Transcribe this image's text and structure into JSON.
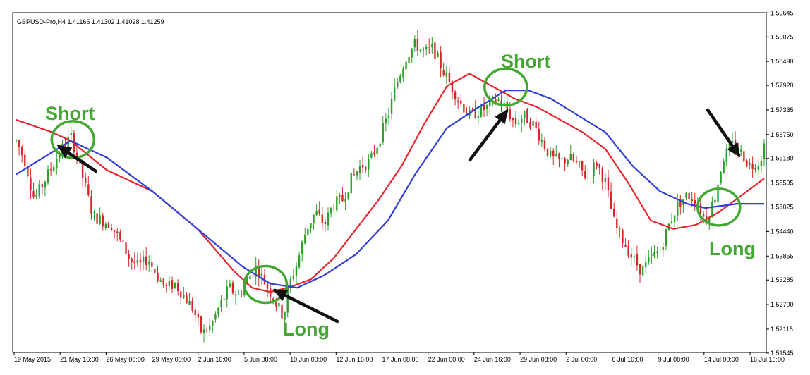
{
  "chart_data": {
    "type": "candlestick",
    "header": {
      "symbol": "GBPUSD-Pro,H4",
      "open": "1.41165",
      "high": "1.41302",
      "low": "1.41028",
      "close": "1.41259"
    },
    "ylim": [
      1.5156,
      1.5965
    ],
    "y_ticks": [
      "1.59645",
      "1.59075",
      "1.58490",
      "1.57920",
      "1.57335",
      "1.56750",
      "1.56180",
      "1.55595",
      "1.55025",
      "1.54440",
      "1.53855",
      "1.53285",
      "1.52700",
      "1.52115",
      "1.51545"
    ],
    "x_ticks": [
      "19 May 2015",
      "21 May 16:00",
      "26 May 08:00",
      "29 May 00:00",
      "2 Jun 16:00",
      "5 Jun 08:00",
      "10 Jun 00:00",
      "12 Jun 16:00",
      "17 Jun 08:00",
      "22 Jun 00:00",
      "24 Jun 16:00",
      "29 Jun 08:00",
      "2 Jul 00:00",
      "6 Jul 16:00",
      "9 Jul 08:00",
      "14 Jul 00:00",
      "16 Jul 16:00"
    ],
    "bar_count": 260,
    "close_path": [
      [
        0,
        1.566
      ],
      [
        4,
        1.561
      ],
      [
        8,
        1.552
      ],
      [
        12,
        1.556
      ],
      [
        16,
        1.56
      ],
      [
        20,
        1.564
      ],
      [
        24,
        1.567
      ],
      [
        26,
        1.564
      ],
      [
        30,
        1.556
      ],
      [
        34,
        1.548
      ],
      [
        38,
        1.547
      ],
      [
        42,
        1.546
      ],
      [
        46,
        1.542
      ],
      [
        50,
        1.538
      ],
      [
        54,
        1.536
      ],
      [
        58,
        1.538
      ],
      [
        62,
        1.534
      ],
      [
        66,
        1.531
      ],
      [
        70,
        1.532
      ],
      [
        74,
        1.529
      ],
      [
        78,
        1.526
      ],
      [
        82,
        1.52
      ],
      [
        86,
        1.522
      ],
      [
        90,
        1.527
      ],
      [
        94,
        1.531
      ],
      [
        98,
        1.529
      ],
      [
        102,
        1.533
      ],
      [
        106,
        1.536
      ],
      [
        110,
        1.532
      ],
      [
        114,
        1.528
      ],
      [
        118,
        1.524
      ],
      [
        120,
        1.531
      ],
      [
        124,
        1.537
      ],
      [
        128,
        1.545
      ],
      [
        132,
        1.549
      ],
      [
        136,
        1.546
      ],
      [
        140,
        1.551
      ],
      [
        144,
        1.552
      ],
      [
        148,
        1.557
      ],
      [
        152,
        1.56
      ],
      [
        156,
        1.561
      ],
      [
        160,
        1.566
      ],
      [
        164,
        1.572
      ],
      [
        168,
        1.58
      ],
      [
        172,
        1.586
      ],
      [
        176,
        1.589
      ],
      [
        180,
        1.587
      ],
      [
        184,
        1.588
      ],
      [
        188,
        1.583
      ],
      [
        192,
        1.579
      ],
      [
        196,
        1.575
      ],
      [
        200,
        1.572
      ],
      [
        204,
        1.573
      ],
      [
        208,
        1.574
      ],
      [
        212,
        1.576
      ],
      [
        216,
        1.574
      ],
      [
        220,
        1.57
      ],
      [
        224,
        1.572
      ],
      [
        228,
        1.57
      ],
      [
        232,
        1.566
      ],
      [
        236,
        1.562
      ],
      [
        240,
        1.561
      ],
      [
        244,
        1.562
      ],
      [
        248,
        1.56
      ],
      [
        252,
        1.557
      ],
      [
        256,
        1.561
      ],
      [
        260,
        1.556
      ],
      [
        264,
        1.546
      ],
      [
        268,
        1.542
      ],
      [
        272,
        1.538
      ],
      [
        276,
        1.535
      ],
      [
        280,
        1.538
      ],
      [
        284,
        1.54
      ],
      [
        288,
        1.546
      ],
      [
        292,
        1.551
      ],
      [
        296,
        1.553
      ],
      [
        300,
        1.552
      ],
      [
        304,
        1.547
      ],
      [
        308,
        1.552
      ],
      [
        312,
        1.562
      ],
      [
        316,
        1.565
      ],
      [
        320,
        1.563
      ],
      [
        324,
        1.56
      ],
      [
        328,
        1.561
      ],
      [
        330,
        1.565
      ]
    ],
    "ma_fast_path": [
      [
        0,
        1.571
      ],
      [
        16,
        1.568
      ],
      [
        24,
        1.566
      ],
      [
        40,
        1.559
      ],
      [
        60,
        1.554
      ],
      [
        80,
        1.545
      ],
      [
        96,
        1.535
      ],
      [
        104,
        1.531
      ],
      [
        112,
        1.53
      ],
      [
        120,
        1.531
      ],
      [
        130,
        1.533
      ],
      [
        140,
        1.538
      ],
      [
        150,
        1.545
      ],
      [
        160,
        1.552
      ],
      [
        170,
        1.56
      ],
      [
        180,
        1.57
      ],
      [
        190,
        1.579
      ],
      [
        200,
        1.582
      ],
      [
        210,
        1.579
      ],
      [
        220,
        1.576
      ],
      [
        230,
        1.574
      ],
      [
        240,
        1.571
      ],
      [
        250,
        1.568
      ],
      [
        260,
        1.564
      ],
      [
        270,
        1.556
      ],
      [
        280,
        1.547
      ],
      [
        290,
        1.545
      ],
      [
        300,
        1.546
      ],
      [
        310,
        1.549
      ],
      [
        320,
        1.553
      ],
      [
        330,
        1.557
      ]
    ],
    "ma_slow_path": [
      [
        0,
        1.558
      ],
      [
        12,
        1.562
      ],
      [
        24,
        1.566
      ],
      [
        40,
        1.562
      ],
      [
        60,
        1.554
      ],
      [
        80,
        1.545
      ],
      [
        100,
        1.536
      ],
      [
        112,
        1.532
      ],
      [
        124,
        1.531
      ],
      [
        136,
        1.534
      ],
      [
        150,
        1.539
      ],
      [
        164,
        1.547
      ],
      [
        176,
        1.558
      ],
      [
        190,
        1.569
      ],
      [
        204,
        1.574
      ],
      [
        216,
        1.578
      ],
      [
        226,
        1.578
      ],
      [
        236,
        1.576
      ],
      [
        248,
        1.572
      ],
      [
        260,
        1.568
      ],
      [
        272,
        1.56
      ],
      [
        284,
        1.554
      ],
      [
        296,
        1.551
      ],
      [
        304,
        1.55
      ],
      [
        318,
        1.551
      ],
      [
        330,
        1.551
      ]
    ],
    "colors": {
      "bull": "#2ca02c",
      "bear": "#d62728",
      "ma_fast": "#e8262e",
      "ma_slow": "#2f3fd9",
      "annotation": "#43a832",
      "arrow": "#111111"
    },
    "annotations": [
      {
        "text": "Short",
        "kind": "label"
      },
      {
        "text": "Long",
        "kind": "label"
      },
      {
        "text": "Short",
        "kind": "label"
      },
      {
        "text": "Long",
        "kind": "label"
      }
    ],
    "markers": [
      {
        "bar": 25,
        "price": 1.5663
      },
      {
        "bar": 110,
        "price": 1.5318
      },
      {
        "bar": 216,
        "price": 1.5788
      },
      {
        "bar": 310,
        "price": 1.5502
      }
    ]
  }
}
